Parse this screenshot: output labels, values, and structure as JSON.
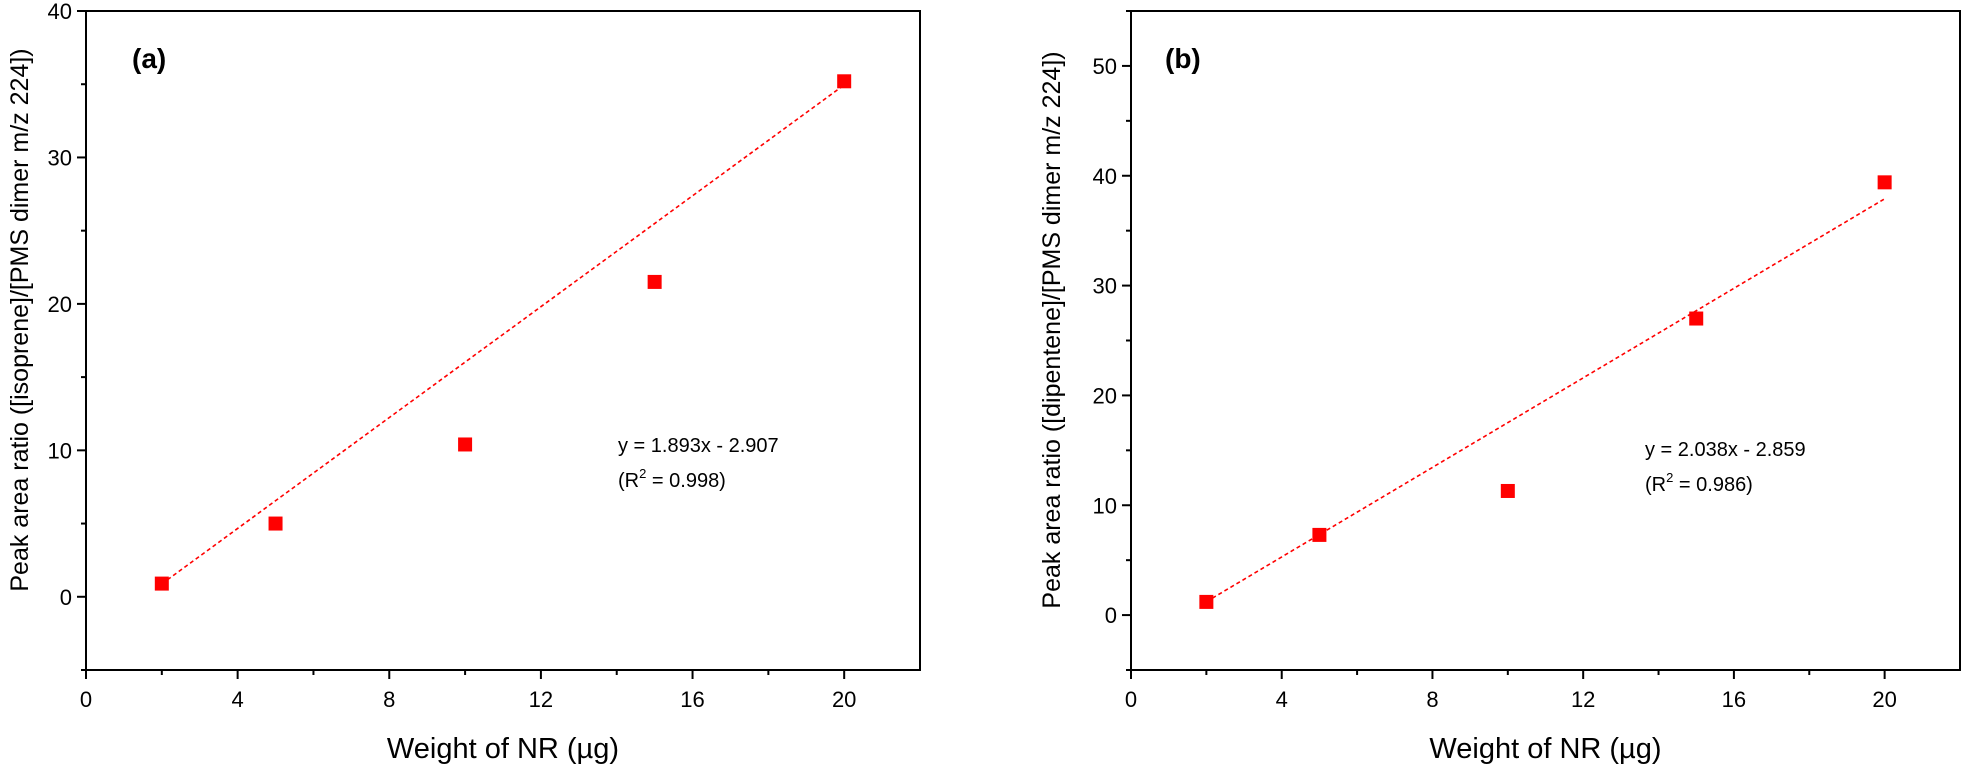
{
  "chart_data": [
    {
      "type": "scatter",
      "panel_label": "(a)",
      "xlabel": "Weight of NR (µg)",
      "ylabel": "Peak area ratio ([isoprene]/[PMS dimer m/z 224])",
      "xlim": [
        0,
        22
      ],
      "ylim": [
        -5,
        40
      ],
      "xticks": [
        0,
        4,
        8,
        12,
        16,
        20
      ],
      "yticks": [
        0,
        10,
        20,
        30,
        40
      ],
      "x": [
        2,
        5,
        10,
        15,
        20
      ],
      "y": [
        0.9,
        5.0,
        10.4,
        21.5,
        35.2
      ],
      "fit": {
        "slope": 1.893,
        "intercept": -2.907,
        "x_range": [
          2,
          20
        ]
      },
      "annotation": {
        "equation": "y = 1.893x - 2.907",
        "r2_prefix": "(R",
        "r2_sup": "2",
        "r2_suffix": " = 0.998)"
      },
      "color": "#ff0000"
    },
    {
      "type": "scatter",
      "panel_label": "(b)",
      "xlabel": "Weight of NR (µg)",
      "ylabel": "Peak area ratio ([dipentene]/[PMS dimer m/z 224])",
      "xlim": [
        0,
        22
      ],
      "ylim": [
        -5,
        55
      ],
      "xticks": [
        0,
        4,
        8,
        12,
        16,
        20
      ],
      "yticks": [
        0,
        10,
        20,
        30,
        40,
        50
      ],
      "x": [
        2,
        5,
        10,
        15,
        20
      ],
      "y": [
        1.2,
        7.3,
        11.3,
        27.0,
        39.4
      ],
      "fit": {
        "slope": 2.038,
        "intercept": -2.859,
        "x_range": [
          2,
          20
        ]
      },
      "annotation": {
        "equation": "y = 2.038x - 2.859",
        "r2_prefix": "(R",
        "r2_sup": "2",
        "r2_suffix": " = 0.986)"
      },
      "color": "#ff0000"
    }
  ]
}
